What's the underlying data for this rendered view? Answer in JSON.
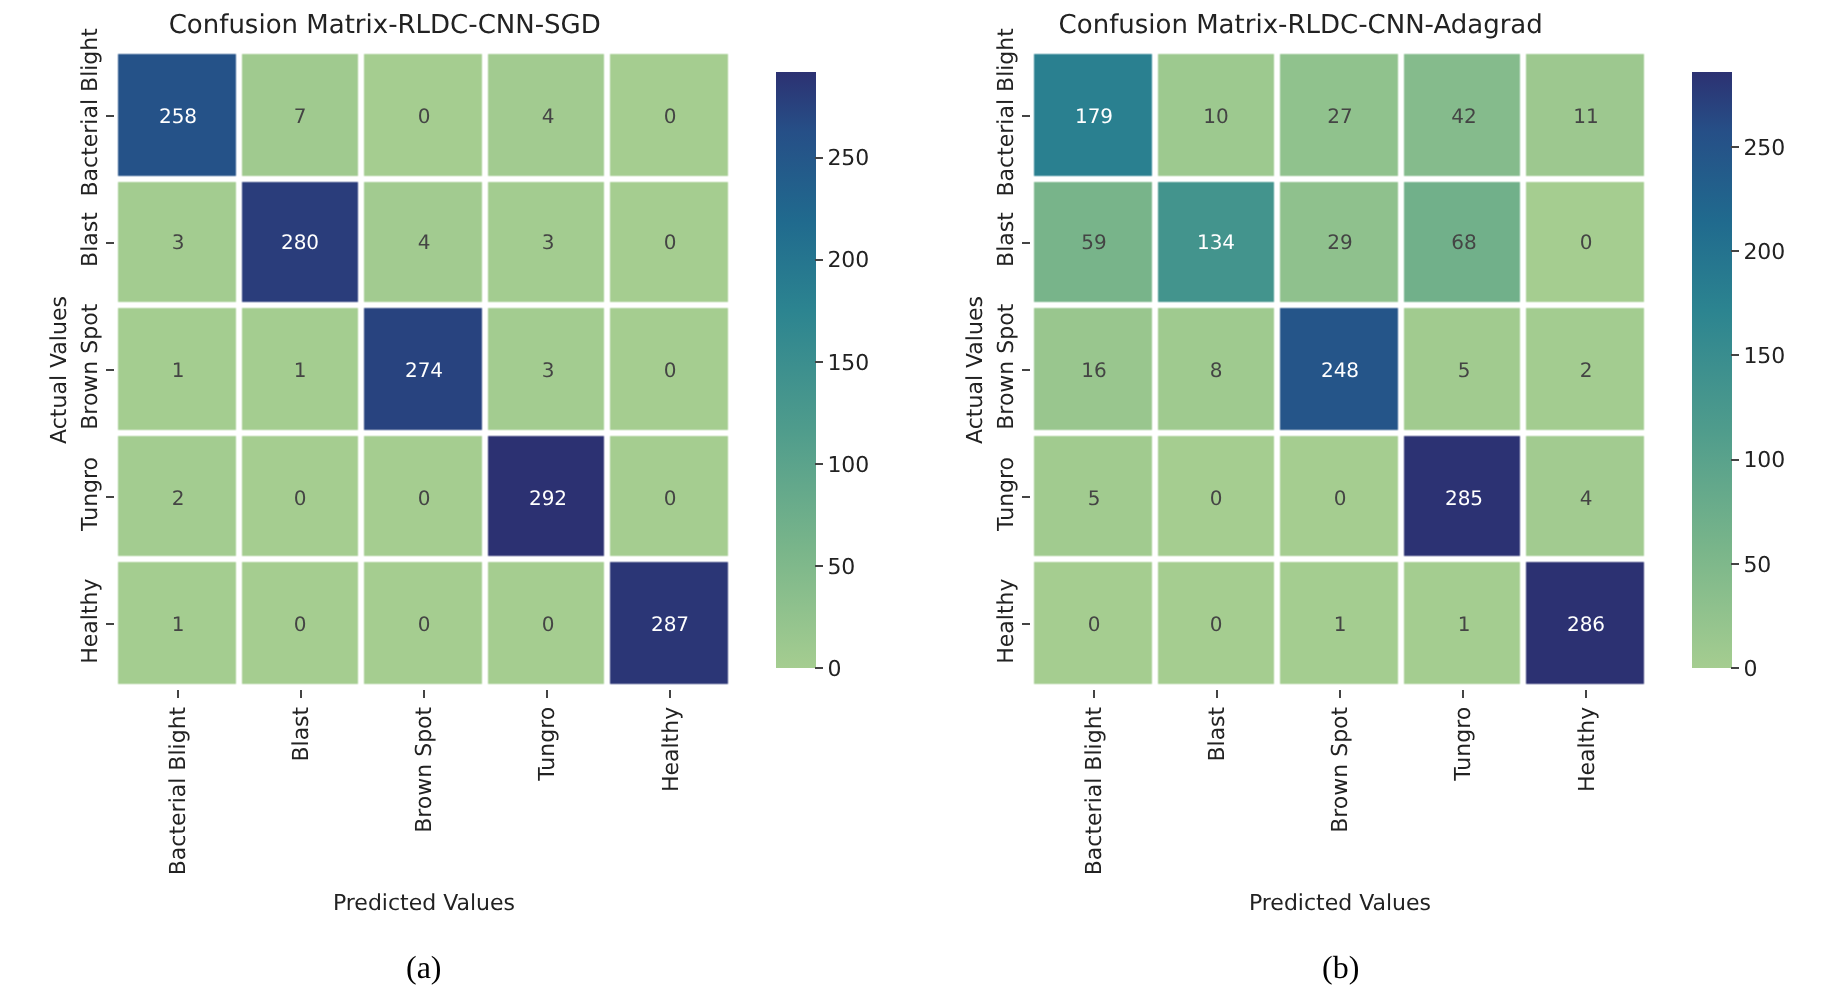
{
  "chart_data": [
    {
      "type": "heatmap",
      "title": "Confusion Matrix-RLDC-CNN-SGD",
      "xlabel": "Predicted Values",
      "ylabel": "Actual Values",
      "categories": [
        "Bacterial Blight",
        "Blast",
        "Brown Spot",
        "Tungro",
        "Healthy"
      ],
      "y_categories": [
        "Bacterial Blight",
        "Blast",
        "Brown Spot",
        "Tungro",
        "Healthy"
      ],
      "cells": [
        [
          258,
          7,
          0,
          4,
          0
        ],
        [
          3,
          280,
          4,
          3,
          0
        ],
        [
          1,
          1,
          274,
          3,
          0
        ],
        [
          2,
          0,
          0,
          292,
          0
        ],
        [
          1,
          0,
          0,
          0,
          287
        ]
      ],
      "clim": [
        0,
        292
      ],
      "cticks": [
        0,
        50,
        100,
        150,
        200,
        250
      ],
      "data_labels": true,
      "annotations": [
        "(a)"
      ]
    },
    {
      "type": "heatmap",
      "title": "Confusion Matrix-RLDC-CNN-Adagrad",
      "xlabel": "Predicted Values",
      "ylabel": "Actual Values",
      "categories": [
        "Bacterial Blight",
        "Blast",
        "Brown Spot",
        "Tungro",
        "Healthy"
      ],
      "y_categories": [
        "Bacterial Blight",
        "Blast",
        "Brown Spot",
        "Tungro",
        "Healthy"
      ],
      "cells": [
        [
          179,
          10,
          27,
          42,
          11
        ],
        [
          59,
          134,
          29,
          68,
          0
        ],
        [
          16,
          8,
          248,
          5,
          2
        ],
        [
          5,
          0,
          0,
          285,
          4
        ],
        [
          0,
          0,
          1,
          1,
          286
        ]
      ],
      "clim": [
        0,
        286
      ],
      "cticks": [
        0,
        50,
        100,
        150,
        200,
        250
      ],
      "data_labels": true,
      "annotations": [
        "(b)"
      ]
    }
  ]
}
